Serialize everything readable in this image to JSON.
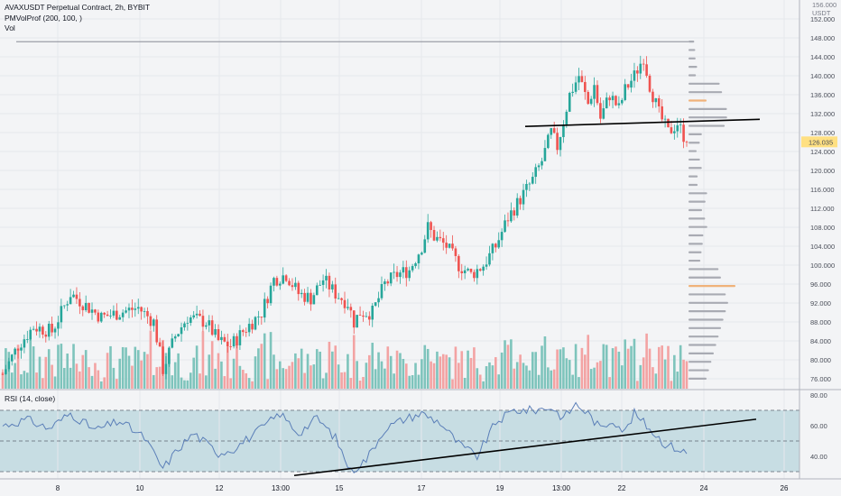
{
  "chart_data": {
    "type": "candlestick",
    "symbol_title": "AVAXUSDT Perpetual Contract, 2h, BYBIT",
    "indicators": [
      "PMVolProf (200, 100, )",
      "Vol"
    ],
    "rsi_label": "RSI (14, close)",
    "price_unit_top": "156.000",
    "price_unit": "USDT",
    "price_axis": {
      "ticks": [
        "152.000",
        "148.000",
        "144.000",
        "140.000",
        "136.000",
        "132.000",
        "128.000",
        "124.000",
        "120.000",
        "116.000",
        "112.000",
        "108.000",
        "104.000",
        "100.000",
        "96.000",
        "92.000",
        "88.000",
        "84.000",
        "80.000",
        "76.000"
      ],
      "range": [
        74,
        156
      ]
    },
    "last_price": "126.035",
    "last_price_color": "#ffe082",
    "rsi_axis": {
      "ticks": [
        "80.00",
        "60.00",
        "40.00"
      ],
      "range": [
        25,
        83
      ],
      "bands": [
        70,
        50,
        30
      ]
    },
    "x_axis_ticks": [
      "8",
      "10",
      "12",
      "13:00",
      "15",
      "17",
      "19",
      "13:00",
      "22",
      "24",
      "26"
    ],
    "colors": {
      "up": "#26a69a",
      "down": "#ef5350",
      "vol_up": "#7ec4bc",
      "vol_down": "#f3a3a3",
      "poc": "#f0b27a",
      "profile": "#a9abb3",
      "rsi_line": "#5b7fb8",
      "rsi_band": "#c7dde3"
    },
    "price_keypoints": [
      [
        0,
        77
      ],
      [
        5,
        83
      ],
      [
        10,
        87
      ],
      [
        16,
        86
      ],
      [
        22,
        94
      ],
      [
        26,
        92
      ],
      [
        32,
        89
      ],
      [
        38,
        90
      ],
      [
        44,
        91
      ],
      [
        49,
        88
      ],
      [
        52,
        78
      ],
      [
        56,
        85
      ],
      [
        60,
        89
      ],
      [
        66,
        88
      ],
      [
        70,
        84
      ],
      [
        74,
        83
      ],
      [
        78,
        86
      ],
      [
        84,
        90
      ],
      [
        88,
        97
      ],
      [
        92,
        98
      ],
      [
        96,
        94
      ],
      [
        100,
        93
      ],
      [
        104,
        97
      ],
      [
        108,
        94
      ],
      [
        112,
        92
      ],
      [
        114,
        88
      ],
      [
        116,
        90
      ],
      [
        120,
        90
      ],
      [
        124,
        96
      ],
      [
        128,
        98
      ],
      [
        132,
        99
      ],
      [
        136,
        104
      ],
      [
        138,
        108
      ],
      [
        140,
        106
      ],
      [
        144,
        104
      ],
      [
        148,
        100
      ],
      [
        152,
        98
      ],
      [
        156,
        100
      ],
      [
        160,
        104
      ],
      [
        164,
        110
      ],
      [
        168,
        114
      ],
      [
        172,
        118
      ],
      [
        175,
        122
      ],
      [
        178,
        128
      ],
      [
        180,
        125
      ],
      [
        184,
        136
      ],
      [
        187,
        140
      ],
      [
        190,
        134
      ],
      [
        192,
        138
      ],
      [
        194,
        131
      ],
      [
        197,
        136
      ],
      [
        200,
        133
      ],
      [
        202,
        137
      ],
      [
        205,
        140
      ],
      [
        208,
        144
      ],
      [
        210,
        138
      ],
      [
        213,
        132
      ],
      [
        216,
        128
      ],
      [
        219,
        130
      ],
      [
        222,
        126.035
      ]
    ],
    "rsi_keypoints": [
      [
        0,
        60
      ],
      [
        8,
        64
      ],
      [
        15,
        58
      ],
      [
        22,
        68
      ],
      [
        30,
        57
      ],
      [
        38,
        63
      ],
      [
        46,
        52
      ],
      [
        52,
        32
      ],
      [
        57,
        45
      ],
      [
        62,
        55
      ],
      [
        70,
        42
      ],
      [
        75,
        45
      ],
      [
        82,
        55
      ],
      [
        90,
        68
      ],
      [
        96,
        55
      ],
      [
        102,
        65
      ],
      [
        108,
        52
      ],
      [
        113,
        30
      ],
      [
        118,
        38
      ],
      [
        124,
        58
      ],
      [
        130,
        64
      ],
      [
        136,
        68
      ],
      [
        142,
        62
      ],
      [
        148,
        48
      ],
      [
        154,
        40
      ],
      [
        160,
        62
      ],
      [
        166,
        70
      ],
      [
        172,
        70
      ],
      [
        178,
        72
      ],
      [
        182,
        65
      ],
      [
        186,
        74
      ],
      [
        190,
        68
      ],
      [
        194,
        58
      ],
      [
        198,
        64
      ],
      [
        202,
        56
      ],
      [
        205,
        68
      ],
      [
        208,
        62
      ],
      [
        211,
        56
      ],
      [
        215,
        48
      ],
      [
        219,
        45
      ],
      [
        222,
        42
      ]
    ],
    "trendline_price": {
      "x_range": [
        582,
        842
      ],
      "values": [
        129.3,
        130.8
      ]
    },
    "trendline_rsi": {
      "x_range": [
        326,
        838
      ],
      "values": [
        27.5,
        64.2
      ]
    },
    "top_line_price": 147.2
  }
}
